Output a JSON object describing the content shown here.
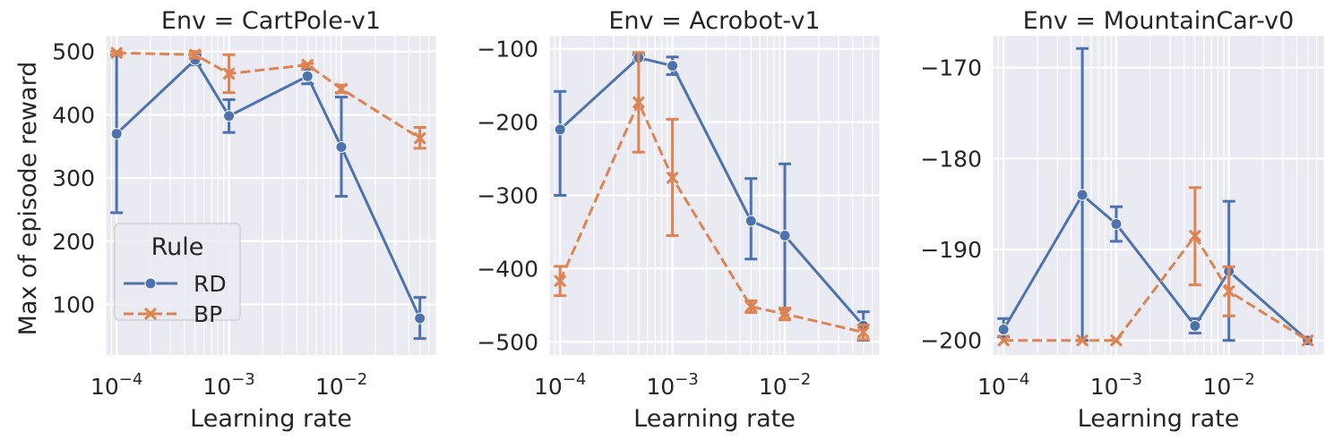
{
  "figure": {
    "ylabel": "Max of episode reward",
    "xlabel": "Learning rate",
    "legend": {
      "title": "Rule",
      "entries": [
        {
          "name": "RD",
          "color": "#4c72b0",
          "style": "solid",
          "marker": "circle"
        },
        {
          "name": "BP",
          "color": "#dd8452",
          "style": "dashed",
          "marker": "x"
        }
      ]
    }
  },
  "chart_data": [
    {
      "type": "line",
      "title": "Env = CartPole-v1",
      "xscale": "log",
      "xlim": [
        8e-05,
        0.07
      ],
      "ylim": [
        20,
        525
      ],
      "xticks": [
        {
          "value": 0.0001,
          "label": "10−4"
        },
        {
          "value": 0.001,
          "label": "10−3"
        },
        {
          "value": 0.01,
          "label": "10−2"
        }
      ],
      "yticks": [
        {
          "value": 100,
          "label": "100"
        },
        {
          "value": 200,
          "label": "200"
        },
        {
          "value": 300,
          "label": "300"
        },
        {
          "value": 400,
          "label": "400"
        },
        {
          "value": 500,
          "label": "500"
        }
      ],
      "x": [
        0.0001,
        0.0005,
        0.001,
        0.005,
        0.01,
        0.05
      ],
      "series": [
        {
          "name": "RD",
          "values": [
            370,
            487,
            398,
            461,
            349,
            78
          ],
          "err_low": [
            245,
            479,
            372,
            449,
            271,
            46
          ],
          "err_high": [
            495,
            495,
            424,
            472,
            428,
            111
          ]
        },
        {
          "name": "BP",
          "values": [
            498,
            495,
            465,
            479,
            441,
            363
          ],
          "err_low": [
            495,
            490,
            435,
            475,
            435,
            347
          ],
          "err_high": [
            500,
            500,
            495,
            481,
            447,
            380
          ]
        }
      ],
      "grid": true,
      "legend_position": "lower-left"
    },
    {
      "type": "line",
      "title": "Env = Acrobot-v1",
      "xscale": "log",
      "xlim": [
        8e-05,
        0.07
      ],
      "ylim": [
        -518,
        -82
      ],
      "xticks": [
        {
          "value": 0.0001,
          "label": "10−4"
        },
        {
          "value": 0.001,
          "label": "10−3"
        },
        {
          "value": 0.01,
          "label": "10−2"
        }
      ],
      "yticks": [
        {
          "value": -500,
          "label": "−500"
        },
        {
          "value": -400,
          "label": "−400"
        },
        {
          "value": -300,
          "label": "−300"
        },
        {
          "value": -200,
          "label": "−200"
        },
        {
          "value": -100,
          "label": "−100"
        }
      ],
      "x": [
        0.0001,
        0.0005,
        0.001,
        0.005,
        0.01,
        0.05
      ],
      "series": [
        {
          "name": "RD",
          "values": [
            -210,
            -112,
            -123,
            -335,
            -355,
            -478
          ],
          "err_low": [
            -300,
            -115,
            -135,
            -387,
            -455,
            -498
          ],
          "err_high": [
            -158,
            -108,
            -111,
            -277,
            -257,
            -459
          ]
        },
        {
          "name": "BP",
          "values": [
            -417,
            -173,
            -276,
            -452,
            -462,
            -487
          ],
          "err_low": [
            -437,
            -241,
            -355,
            -460,
            -470,
            -497
          ],
          "err_high": [
            -397,
            -105,
            -196,
            -444,
            -454,
            -477
          ]
        }
      ],
      "grid": true
    },
    {
      "type": "line",
      "title": "Env = MountainCar-v0",
      "xscale": "log",
      "xlim": [
        8e-05,
        0.07
      ],
      "ylim": [
        -201.6,
        -166.5
      ],
      "xticks": [
        {
          "value": 0.0001,
          "label": "10−4"
        },
        {
          "value": 0.001,
          "label": "10−3"
        },
        {
          "value": 0.01,
          "label": "10−2"
        }
      ],
      "yticks": [
        {
          "value": -200,
          "label": "−200"
        },
        {
          "value": -190,
          "label": "−190"
        },
        {
          "value": -180,
          "label": "−180"
        },
        {
          "value": -170,
          "label": "−170"
        }
      ],
      "x": [
        0.0001,
        0.0005,
        0.001,
        0.005,
        0.01,
        0.05
      ],
      "series": [
        {
          "name": "RD",
          "values": [
            -198.8,
            -184.0,
            -187.2,
            -198.4,
            -192.4,
            -200.0
          ],
          "err_low": [
            -199.6,
            -200.0,
            -189.1,
            -199.2,
            -200.0,
            -200.0
          ],
          "err_high": [
            -197.6,
            -167.9,
            -185.3,
            -197.6,
            -184.7,
            -200.0
          ]
        },
        {
          "name": "BP",
          "values": [
            -200.0,
            -200.0,
            -200.0,
            -188.5,
            -194.6,
            -200.0
          ],
          "err_low": [
            -200.0,
            -200.0,
            -200.0,
            -193.9,
            -197.3,
            -200.0
          ],
          "err_high": [
            -200.0,
            -200.0,
            -200.0,
            -183.2,
            -191.9,
            -200.0
          ]
        }
      ],
      "grid": true
    }
  ]
}
